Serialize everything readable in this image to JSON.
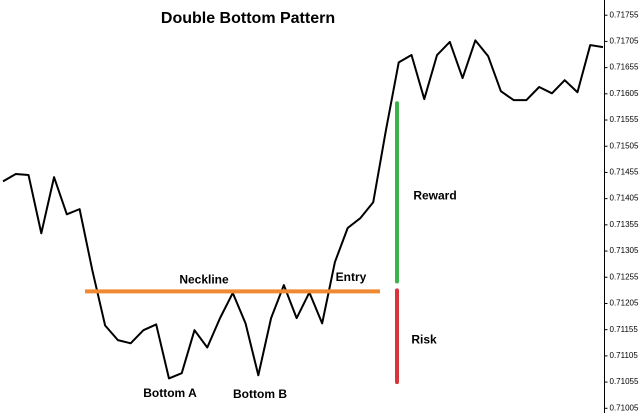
{
  "chart_data": {
    "type": "line",
    "title": "Double Bottom Pattern",
    "categories": [
      null,
      null,
      null,
      null,
      null,
      null,
      null,
      null,
      null,
      null,
      null,
      null,
      null,
      null,
      null,
      null,
      null,
      null,
      null,
      null,
      null,
      null,
      null,
      null,
      null,
      null,
      null,
      null,
      null,
      null,
      null,
      null,
      null,
      null,
      null,
      null,
      null,
      null,
      null,
      null,
      null,
      null,
      null,
      null,
      null,
      null,
      null,
      null
    ],
    "series": [
      {
        "color": "#000000",
        "values": [
          0.71438,
          0.71452,
          0.7145,
          0.71339,
          0.71446,
          0.71375,
          0.71385,
          0.71268,
          0.71163,
          0.71135,
          0.71129,
          0.71154,
          0.71165,
          0.71062,
          0.71072,
          0.71154,
          0.71121,
          0.71177,
          0.71225,
          0.71167,
          0.71068,
          0.71177,
          0.7124,
          0.71177,
          0.71226,
          0.71167,
          0.71284,
          0.71349,
          0.71368,
          0.71398,
          0.71536,
          0.71665,
          0.71679,
          0.71595,
          0.71679,
          0.71704,
          0.71635,
          0.71707,
          0.71677,
          0.7161,
          0.71593,
          0.71593,
          0.71618,
          0.71606,
          0.71631,
          0.71608,
          0.71698,
          0.71694
        ]
      }
    ],
    "ylim": [
      0.70996,
      0.71784
    ],
    "yticks": [
      0.71755,
      0.71705,
      0.71655,
      0.71605,
      0.71555,
      0.71505,
      0.71455,
      0.71405,
      0.71355,
      0.71305,
      0.71255,
      0.71205,
      0.71155,
      0.71105,
      0.71055,
      0.71005
    ],
    "neckline": {
      "label": "Neckline",
      "value": 0.71228,
      "color": "#f08a32"
    },
    "reward": {
      "label": "Reward",
      "values": [
        0.71587,
        0.71247
      ],
      "color": "#3cb34a"
    },
    "risk": {
      "label": "Risk",
      "values": [
        0.7123,
        0.71055
      ],
      "color": "#d9343a"
    },
    "annotations": [
      "Bottom A",
      "Bottom B",
      "Entry"
    ]
  }
}
